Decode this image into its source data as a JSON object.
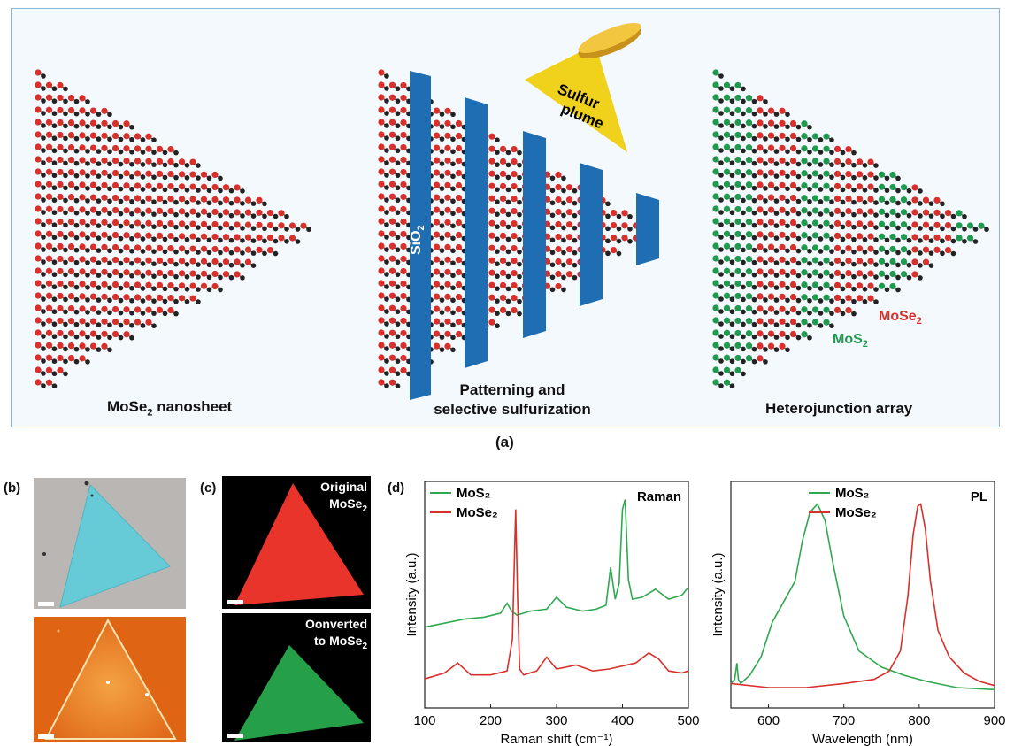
{
  "panel_a": {
    "tag": "(a)",
    "nanosheet_label": "MoSe",
    "nanosheet_sub": "2",
    "nanosheet_rest": " nanosheet",
    "patterning_label_1": "Patterning and",
    "patterning_label_2": "selective sulfurization",
    "heterojunction_label": "Heterojunction array",
    "sio2_main": "SiO",
    "sio2_sub": "2",
    "plume_line1": "Sulfur",
    "plume_line2": "plume",
    "mose2_main": "MoSe",
    "mose2_sub": "2",
    "mos2_main": "MoS",
    "mos2_sub": "2",
    "colors": {
      "se_atom": "#d8302a",
      "mo_atom": "#222222",
      "s_atom": "#1f9a4e",
      "mask": "#1f6eb3",
      "plume": "#f0d21c"
    }
  },
  "panel_b": {
    "tag": "(b)"
  },
  "panel_c": {
    "tag": "(c)",
    "top_label_1": "Original",
    "top_label_2_main": "MoSe",
    "top_label_2_sub": "2",
    "bottom_label_1": "Oonverted",
    "bottom_label_2_main": "to MoSe",
    "bottom_label_2_sub": "2"
  },
  "panel_d": {
    "tag": "(d)"
  },
  "chart_data": [
    {
      "type": "line",
      "title": "Raman",
      "xlabel": "Raman shift (cm⁻¹)",
      "ylabel": "Intensity (a.u.)",
      "xlim": [
        100,
        500
      ],
      "xticks": [
        100,
        200,
        300,
        400,
        500
      ],
      "legend_position": "top-left",
      "series": [
        {
          "name": "MoS₂",
          "color": "#2fa84f",
          "x": [
            100,
            130,
            160,
            190,
            215,
            225,
            232,
            240,
            260,
            285,
            300,
            315,
            340,
            360,
            375,
            382,
            389,
            395,
            400,
            404,
            409,
            415,
            430,
            450,
            470,
            490,
            500
          ],
          "y": [
            0.36,
            0.38,
            0.4,
            0.41,
            0.43,
            0.48,
            0.44,
            0.42,
            0.44,
            0.45,
            0.51,
            0.46,
            0.44,
            0.45,
            0.47,
            0.66,
            0.5,
            0.58,
            0.95,
            1.0,
            0.6,
            0.5,
            0.51,
            0.55,
            0.5,
            0.52,
            0.56
          ]
        },
        {
          "name": "MoSe₂",
          "color": "#d8302a",
          "x": [
            100,
            130,
            150,
            170,
            200,
            225,
            233,
            238,
            241,
            244,
            250,
            270,
            285,
            300,
            330,
            355,
            380,
            420,
            440,
            455,
            470,
            490,
            500
          ],
          "y": [
            0.1,
            0.13,
            0.18,
            0.12,
            0.12,
            0.14,
            0.3,
            0.95,
            0.5,
            0.15,
            0.12,
            0.14,
            0.21,
            0.15,
            0.17,
            0.14,
            0.15,
            0.18,
            0.23,
            0.2,
            0.14,
            0.13,
            0.14
          ]
        }
      ]
    },
    {
      "type": "line",
      "title": "PL",
      "xlabel": "Wavelength (nm)",
      "ylabel": "Intensity (a.u.)",
      "xlim": [
        550,
        900
      ],
      "xticks": [
        600,
        700,
        800,
        900
      ],
      "legend_position": "top-left",
      "series": [
        {
          "name": "MoS₂",
          "color": "#2fa84f",
          "x": [
            550,
            555,
            558,
            560,
            563,
            575,
            590,
            605,
            620,
            635,
            645,
            655,
            665,
            675,
            685,
            700,
            720,
            750,
            780,
            810,
            850,
            900
          ],
          "y": [
            0.12,
            0.14,
            0.22,
            0.14,
            0.12,
            0.16,
            0.25,
            0.42,
            0.52,
            0.62,
            0.82,
            0.96,
            1.0,
            0.92,
            0.72,
            0.45,
            0.28,
            0.2,
            0.16,
            0.13,
            0.1,
            0.09
          ]
        },
        {
          "name": "MoSe₂",
          "color": "#d8302a",
          "x": [
            550,
            600,
            650,
            700,
            740,
            760,
            775,
            785,
            792,
            798,
            802,
            808,
            815,
            825,
            840,
            860,
            880,
            900
          ],
          "y": [
            0.12,
            0.1,
            0.1,
            0.12,
            0.14,
            0.18,
            0.28,
            0.55,
            0.85,
            0.99,
            1.0,
            0.88,
            0.62,
            0.38,
            0.25,
            0.17,
            0.13,
            0.11
          ]
        }
      ]
    }
  ]
}
